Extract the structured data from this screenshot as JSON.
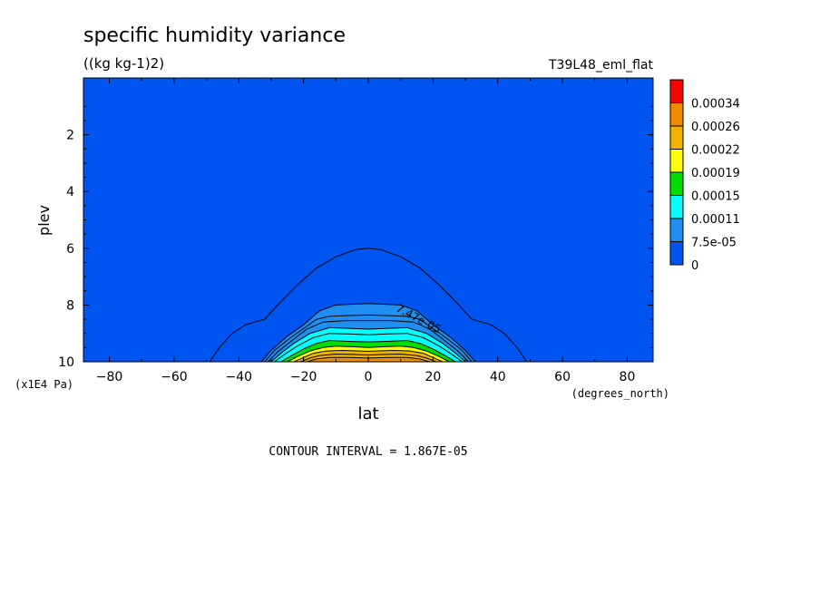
{
  "header": {
    "title": "specific humidity variance",
    "units": "((kg kg-1)2)",
    "dataset": "T39L48_eml_flat"
  },
  "footer": {
    "contour_interval": "CONTOUR INTERVAL = 1.867E-05"
  },
  "colors": {
    "levels": [
      "#0055f0",
      "#1e8ff0",
      "#00ffff",
      "#00e000",
      "#ffff00",
      "#f0b400",
      "#f08c00",
      "#ff0000"
    ],
    "frame": "#000000"
  },
  "chart_data": {
    "type": "heatmap",
    "title": "specific humidity variance",
    "subtitle": "((kg kg-1)2)",
    "xlabel": "lat",
    "x_units": "(degrees_north)",
    "ylabel": "plev",
    "y_units": "(x1E4 Pa)",
    "xlim": [
      -88,
      88
    ],
    "ylim": [
      10,
      0
    ],
    "x_ticks": [
      -80,
      -60,
      -40,
      -20,
      0,
      20,
      40,
      60,
      80
    ],
    "y_ticks": [
      2,
      4,
      6,
      8,
      10
    ],
    "contour_interval": 1.867e-05,
    "colorbar": {
      "labels": [
        "0",
        "7.5e-05",
        "0.00011",
        "0.00015",
        "0.00019",
        "0.00022",
        "0.00026",
        "0.00034"
      ],
      "colors": [
        "#0055f0",
        "#1e8ff0",
        "#00ffff",
        "#00e000",
        "#ffff00",
        "#f0b400",
        "#f08c00",
        "#ff0000"
      ]
    },
    "contour_labels": [
      {
        "text": "7.47e-05",
        "lat": 15,
        "plev": 8.6
      }
    ],
    "contours": [
      {
        "level": 1.87e-05,
        "points": [
          [
            -49,
            10
          ],
          [
            -46,
            9.5
          ],
          [
            -42,
            9.0
          ],
          [
            -38,
            8.7
          ],
          [
            -32,
            8.5
          ],
          [
            -28,
            8.0
          ],
          [
            -22,
            7.3
          ],
          [
            -16,
            6.7
          ],
          [
            -10,
            6.3
          ],
          [
            -4,
            6.05
          ],
          [
            0,
            6.0
          ],
          [
            4,
            6.05
          ],
          [
            10,
            6.3
          ],
          [
            16,
            6.7
          ],
          [
            22,
            7.3
          ],
          [
            28,
            8.0
          ],
          [
            32,
            8.5
          ],
          [
            38,
            8.7
          ],
          [
            42,
            9.0
          ],
          [
            46,
            9.5
          ],
          [
            49,
            10
          ]
        ]
      },
      {
        "level": 3.73e-05,
        "points": [
          [
            -33,
            10
          ],
          [
            -30,
            9.6
          ],
          [
            -25,
            9.1
          ],
          [
            -20,
            8.7
          ],
          [
            -17,
            8.4
          ],
          [
            -15,
            8.2
          ],
          [
            -10,
            8.0
          ],
          [
            -5,
            7.97
          ],
          [
            0,
            7.95
          ],
          [
            5,
            7.97
          ],
          [
            10,
            8.0
          ],
          [
            15,
            8.2
          ],
          [
            17,
            8.4
          ],
          [
            20,
            8.7
          ],
          [
            25,
            9.1
          ],
          [
            30,
            9.6
          ],
          [
            33,
            10
          ]
        ]
      },
      {
        "level": 5.6e-05,
        "points": [
          [
            -32,
            10
          ],
          [
            -29,
            9.6
          ],
          [
            -24,
            9.15
          ],
          [
            -19,
            8.75
          ],
          [
            -16,
            8.5
          ],
          [
            -12,
            8.4
          ],
          [
            -6,
            8.37
          ],
          [
            0,
            8.35
          ],
          [
            6,
            8.37
          ],
          [
            12,
            8.4
          ],
          [
            16,
            8.5
          ],
          [
            19,
            8.75
          ],
          [
            24,
            9.15
          ],
          [
            29,
            9.6
          ],
          [
            32,
            10
          ]
        ]
      },
      {
        "level": 7.47e-05,
        "points": [
          [
            -31,
            10
          ],
          [
            -28,
            9.65
          ],
          [
            -23,
            9.2
          ],
          [
            -19,
            8.85
          ],
          [
            -14,
            8.6
          ],
          [
            -7,
            8.55
          ],
          [
            0,
            8.55
          ],
          [
            7,
            8.55
          ],
          [
            14,
            8.6
          ],
          [
            19,
            8.85
          ],
          [
            23,
            9.2
          ],
          [
            28,
            9.65
          ],
          [
            31,
            10
          ]
        ]
      },
      {
        "level": 9.33e-05,
        "points": [
          [
            -30,
            10
          ],
          [
            -27,
            9.7
          ],
          [
            -23,
            9.35
          ],
          [
            -18,
            9.0
          ],
          [
            -12,
            8.8
          ],
          [
            -6,
            8.82
          ],
          [
            0,
            8.85
          ],
          [
            6,
            8.82
          ],
          [
            12,
            8.8
          ],
          [
            18,
            9.0
          ],
          [
            23,
            9.35
          ],
          [
            27,
            9.7
          ],
          [
            30,
            10
          ]
        ]
      },
      {
        "level": 0.000112,
        "points": [
          [
            -29,
            10
          ],
          [
            -26,
            9.75
          ],
          [
            -22,
            9.45
          ],
          [
            -17,
            9.15
          ],
          [
            -12,
            9.0
          ],
          [
            -6,
            9.02
          ],
          [
            0,
            9.05
          ],
          [
            6,
            9.02
          ],
          [
            12,
            9.0
          ],
          [
            17,
            9.15
          ],
          [
            22,
            9.45
          ],
          [
            26,
            9.75
          ],
          [
            29,
            10
          ]
        ]
      },
      {
        "level": 0.000131,
        "points": [
          [
            -27,
            10
          ],
          [
            -24,
            9.8
          ],
          [
            -20,
            9.55
          ],
          [
            -16,
            9.35
          ],
          [
            -12,
            9.25
          ],
          [
            -6,
            9.28
          ],
          [
            0,
            9.3
          ],
          [
            6,
            9.28
          ],
          [
            12,
            9.25
          ],
          [
            16,
            9.35
          ],
          [
            20,
            9.55
          ],
          [
            24,
            9.8
          ],
          [
            27,
            10
          ]
        ]
      },
      {
        "level": 0.000149,
        "points": [
          [
            -25,
            10
          ],
          [
            -22,
            9.82
          ],
          [
            -18,
            9.62
          ],
          [
            -14,
            9.5
          ],
          [
            -10,
            9.45
          ],
          [
            -5,
            9.47
          ],
          [
            0,
            9.5
          ],
          [
            5,
            9.47
          ],
          [
            10,
            9.45
          ],
          [
            14,
            9.5
          ],
          [
            18,
            9.62
          ],
          [
            22,
            9.82
          ],
          [
            25,
            10
          ]
        ]
      },
      {
        "level": 0.000168,
        "points": [
          [
            -23,
            10
          ],
          [
            -20,
            9.85
          ],
          [
            -17,
            9.7
          ],
          [
            -13,
            9.62
          ],
          [
            -8,
            9.6
          ],
          [
            0,
            9.63
          ],
          [
            8,
            9.6
          ],
          [
            13,
            9.62
          ],
          [
            17,
            9.7
          ],
          [
            20,
            9.85
          ],
          [
            23,
            10
          ]
        ]
      },
      {
        "level": 0.000187,
        "points": [
          [
            -21,
            10
          ],
          [
            -18,
            9.87
          ],
          [
            -15,
            9.78
          ],
          [
            -10,
            9.73
          ],
          [
            -5,
            9.74
          ],
          [
            0,
            9.76
          ],
          [
            5,
            9.74
          ],
          [
            10,
            9.73
          ],
          [
            15,
            9.78
          ],
          [
            18,
            9.87
          ],
          [
            21,
            10
          ]
        ]
      },
      {
        "level": 0.000205,
        "points": [
          [
            -19,
            10
          ],
          [
            -16,
            9.9
          ],
          [
            -12,
            9.85
          ],
          [
            -6,
            9.85
          ],
          [
            0,
            9.87
          ],
          [
            6,
            9.85
          ],
          [
            12,
            9.85
          ],
          [
            16,
            9.9
          ],
          [
            19,
            10
          ]
        ]
      }
    ],
    "fill_bands": [
      {
        "band": 1,
        "from_contour": 1
      },
      {
        "band": 2,
        "from_contour": 4
      },
      {
        "band": 3,
        "from_contour": 6
      },
      {
        "band": 4,
        "from_contour": 7
      },
      {
        "band": 5,
        "from_contour": 8
      },
      {
        "band": 6,
        "from_contour": 10
      }
    ]
  }
}
